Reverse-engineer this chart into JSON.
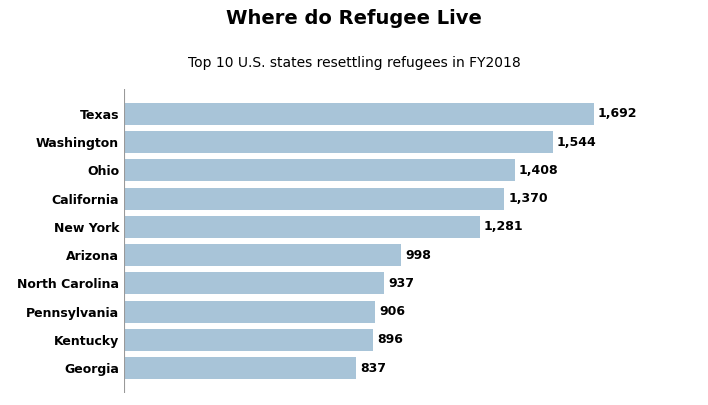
{
  "title": "Where do Refugee Live",
  "subtitle": "Top 10 U.S. states resettling refugees in FY2018",
  "categories": [
    "Georgia",
    "Kentucky",
    "Pennsylvania",
    "North Carolina",
    "Arizona",
    "New York",
    "California",
    "Ohio",
    "Washington",
    "Texas"
  ],
  "values": [
    837,
    896,
    906,
    937,
    998,
    1281,
    1370,
    1408,
    1544,
    1692
  ],
  "bar_color": "#a8c4d8",
  "label_color": "#000000",
  "background_color": "#ffffff",
  "title_fontsize": 14,
  "subtitle_fontsize": 10,
  "label_fontsize": 9,
  "tick_fontsize": 9,
  "xlim": [
    0,
    1900
  ]
}
